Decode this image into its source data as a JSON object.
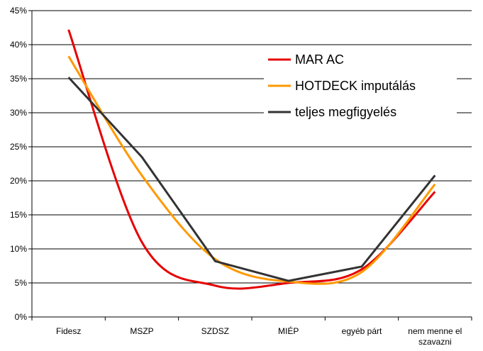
{
  "chart_data": {
    "type": "line",
    "categories": [
      "Fidesz",
      "MSZP",
      "SZDSZ",
      "MIÉP",
      "egyéb párt",
      "nem menne el szavazni"
    ],
    "category_lines": [
      [
        "Fidesz"
      ],
      [
        "MSZP"
      ],
      [
        "SZDSZ"
      ],
      [
        "MIÉP"
      ],
      [
        "egyéb párt"
      ],
      [
        "nem menne el",
        "szavazni"
      ]
    ],
    "ylim": [
      0,
      45
    ],
    "y_ticks": [
      0,
      5,
      10,
      15,
      20,
      25,
      30,
      35,
      40,
      45
    ],
    "y_tick_labels": [
      "0%",
      "5%",
      "10%",
      "15%",
      "20%",
      "25%",
      "30%",
      "35%",
      "40%",
      "45%"
    ],
    "grid": "horizontal",
    "legend_position": "top-right",
    "series": [
      {
        "name": "MAR AC",
        "color": "#e60000",
        "smooth": true,
        "values": [
          42.2,
          11.0,
          4.6,
          5.0,
          7.0,
          18.4
        ]
      },
      {
        "name": "HOTDECK imputálás",
        "color": "#ff9900",
        "smooth": true,
        "values": [
          38.3,
          20.8,
          8.5,
          5.2,
          6.6,
          19.5
        ]
      },
      {
        "name": "teljes megfigyelés",
        "color": "#333333",
        "smooth": false,
        "values": [
          35.2,
          23.5,
          8.2,
          5.3,
          7.4,
          20.8
        ]
      }
    ]
  }
}
